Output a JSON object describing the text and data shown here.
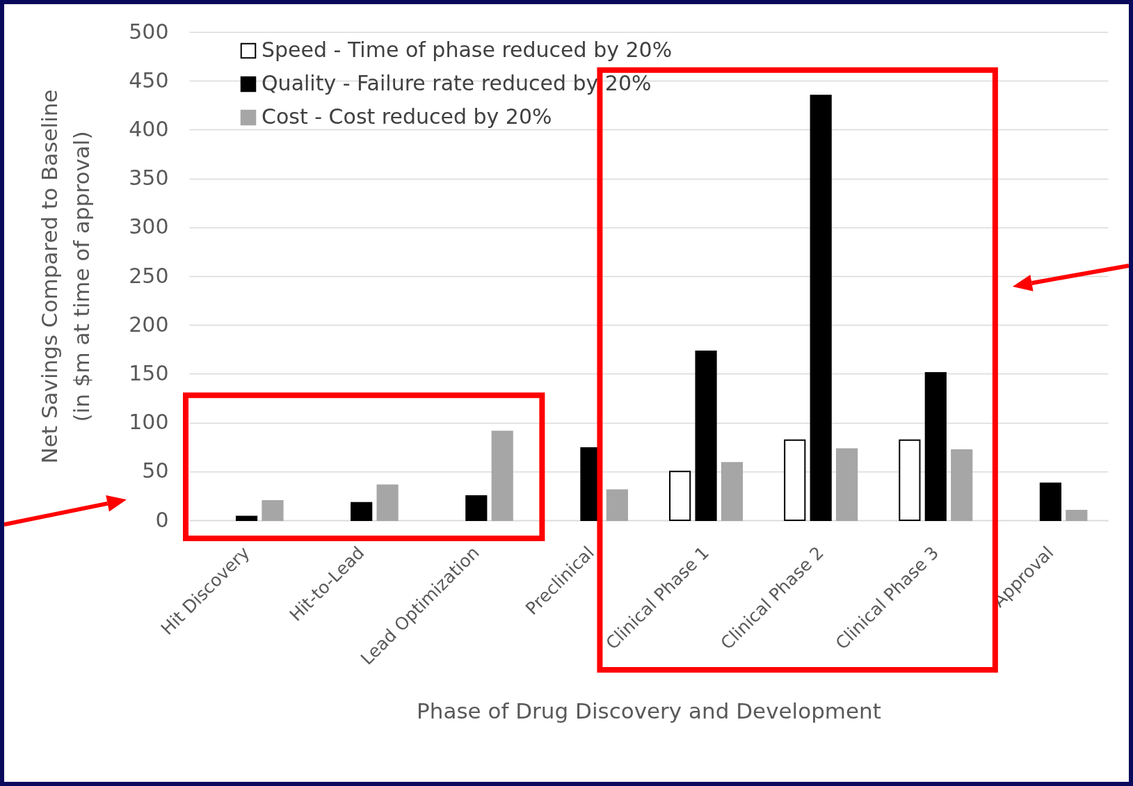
{
  "chart_data": {
    "type": "bar",
    "xlabel": "Phase of Drug Discovery and Development",
    "ylabel": "Net Savings Compared to Baseline\n(in $m at time of approval)",
    "categories": [
      "Hit Discovery",
      "Hit-to-Lead",
      "Lead Optimization",
      "Preclinical",
      "Clinical Phase 1",
      "Clinical Phase 2",
      "Clinical Phase 3",
      "Approval"
    ],
    "series": [
      {
        "name": "Speed - Time of phase reduced by 20%",
        "color": "#ffffff",
        "values": [
          null,
          null,
          null,
          null,
          50,
          82,
          82,
          null
        ]
      },
      {
        "name": "Quality - Failure rate reduced by 20%",
        "color": "#000000",
        "values": [
          4,
          18,
          25,
          74,
          173,
          435,
          151,
          38
        ]
      },
      {
        "name": "Cost - Cost reduced by 20%",
        "color": "#a6a6a6",
        "values": [
          20,
          36,
          91,
          31,
          59,
          73,
          72,
          10
        ]
      }
    ],
    "ylim": [
      0,
      500
    ],
    "yticks": [
      0,
      50,
      100,
      150,
      200,
      250,
      300,
      350,
      400,
      450,
      500
    ],
    "grid": "y",
    "legend": "top left"
  }
}
